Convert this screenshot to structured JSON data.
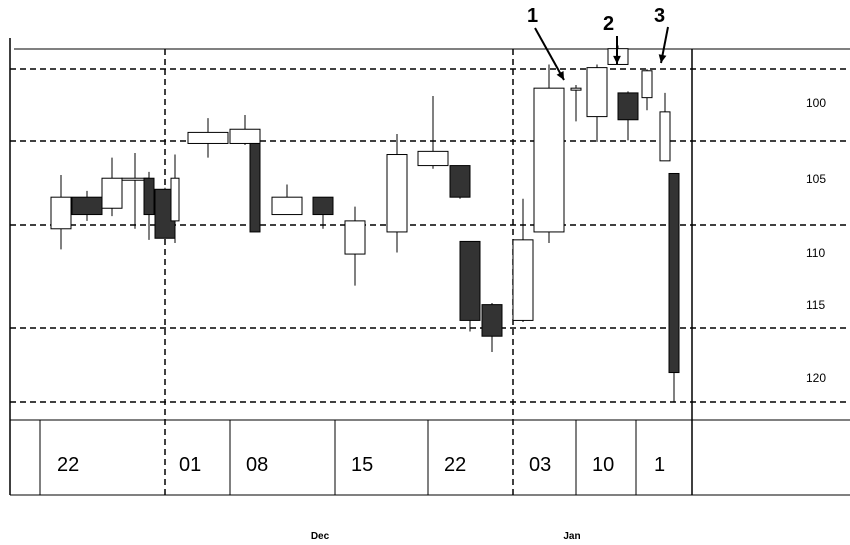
{
  "chart_data": {
    "type": "candlestick",
    "title": "",
    "xlabel": "",
    "ylabel": "",
    "ylim": [
      97.5,
      123.5
    ],
    "y_ticks": [
      100,
      105,
      110,
      115,
      120
    ],
    "y_tick_labels": [
      "100",
      "105",
      "110",
      "115",
      "120"
    ],
    "x_tick_labels": [
      "22",
      "01",
      "08",
      "15",
      "22",
      "03",
      "10",
      "1"
    ],
    "month_labels": [
      "Dec",
      "Jan"
    ],
    "grid": "dashed horizontal and vertical",
    "colors": {
      "up": "#ffffff",
      "down": "#333333",
      "line": "#000000"
    },
    "annotations": [
      "1",
      "2",
      "3"
    ],
    "candles": [
      {
        "open": 110.9,
        "high": 114.3,
        "low": 109.6,
        "close": 112.9
      },
      {
        "open": 112.9,
        "high": 113.3,
        "low": 111.4,
        "close": 111.8
      },
      {
        "open": 112.2,
        "high": 115.4,
        "low": 111.7,
        "close": 114.1
      },
      {
        "open": 114.1,
        "high": 115.7,
        "low": 110.9,
        "close": 114.1
      },
      {
        "open": 114.1,
        "high": 114.5,
        "low": 110.2,
        "close": 111.8
      },
      {
        "open": 113.4,
        "high": 113.5,
        "low": 110.3,
        "close": 110.3
      },
      {
        "open": 111.4,
        "high": 115.6,
        "low": 110.0,
        "close": 114.1
      },
      {
        "open": 116.3,
        "high": 117.9,
        "low": 115.4,
        "close": 117.0
      },
      {
        "open": 116.3,
        "high": 118.1,
        "low": 116.2,
        "close": 117.2
      },
      {
        "open": 116.3,
        "high": 116.3,
        "low": 110.7,
        "close": 110.7
      },
      {
        "open": 111.8,
        "high": 113.7,
        "low": 111.8,
        "close": 112.9
      },
      {
        "open": 112.9,
        "high": 112.9,
        "low": 110.9,
        "close": 111.8
      },
      {
        "open": 109.3,
        "high": 112.3,
        "low": 107.3,
        "close": 111.4
      },
      {
        "open": 110.7,
        "high": 116.9,
        "low": 109.4,
        "close": 115.6
      },
      {
        "open": 114.9,
        "high": 119.3,
        "low": 114.7,
        "close": 115.8
      },
      {
        "open": 114.9,
        "high": 114.9,
        "low": 112.8,
        "close": 112.9
      },
      {
        "open": 110.1,
        "high": 110.1,
        "low": 104.4,
        "close": 105.1
      },
      {
        "open": 106.1,
        "high": 106.2,
        "low": 103.1,
        "close": 104.1
      },
      {
        "open": 105.1,
        "high": 112.8,
        "low": 105.0,
        "close": 110.2
      },
      {
        "open": 110.7,
        "high": 121.3,
        "low": 110.0,
        "close": 119.8
      },
      {
        "open": 119.8,
        "high": 120.0,
        "low": 117.7,
        "close": 119.8
      },
      {
        "open": 118.0,
        "high": 121.3,
        "low": 116.4,
        "close": 121.1
      },
      {
        "open": 121.3,
        "high": 122.5,
        "low": 121.3,
        "close": 122.3
      },
      {
        "open": 119.5,
        "high": 119.6,
        "low": 116.5,
        "close": 117.8
      },
      {
        "open": 119.2,
        "high": 121.0,
        "low": 118.4,
        "close": 120.9
      },
      {
        "open": 115.2,
        "high": 119.5,
        "low": 115.2,
        "close": 118.3
      },
      {
        "open": 114.4,
        "high": 114.4,
        "low": 99.9,
        "close": 101.8
      }
    ]
  }
}
